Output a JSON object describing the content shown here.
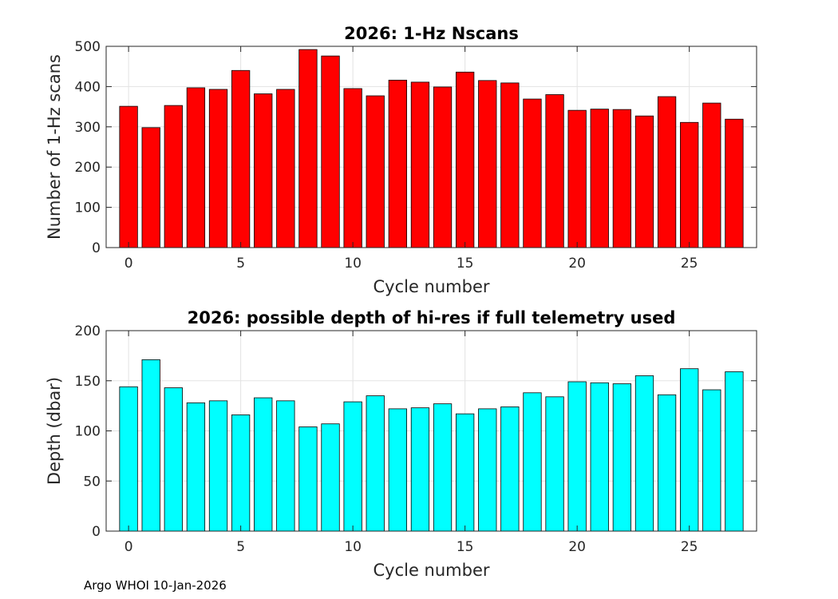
{
  "chart_data": [
    {
      "type": "bar",
      "title": "2026: 1-Hz Nscans",
      "xlabel": "Cycle number",
      "ylabel": "Number of 1-Hz scans",
      "xlim": [
        -1,
        28
      ],
      "ylim": [
        0,
        500
      ],
      "xticks": [
        0,
        5,
        10,
        15,
        20,
        25
      ],
      "yticks": [
        0,
        100,
        200,
        300,
        400,
        500
      ],
      "grid": true,
      "color": "#ff0000",
      "x": [
        0,
        1,
        2,
        3,
        4,
        5,
        6,
        7,
        8,
        9,
        10,
        11,
        12,
        13,
        14,
        15,
        16,
        17,
        18,
        19,
        20,
        21,
        22,
        23,
        24,
        25,
        26,
        27
      ],
      "values": [
        351,
        298,
        353,
        397,
        393,
        440,
        382,
        393,
        492,
        476,
        395,
        377,
        416,
        411,
        399,
        436,
        415,
        409,
        369,
        380,
        341,
        344,
        343,
        327,
        375,
        311,
        359,
        319
      ]
    },
    {
      "type": "bar",
      "title": "2026: possible depth of hi-res if full telemetry used",
      "xlabel": "Cycle number",
      "ylabel": "Depth (dbar)",
      "xlim": [
        -1,
        28
      ],
      "ylim": [
        0,
        200
      ],
      "xticks": [
        0,
        5,
        10,
        15,
        20,
        25
      ],
      "yticks": [
        0,
        50,
        100,
        150,
        200
      ],
      "grid": true,
      "color": "#00ffff",
      "x": [
        0,
        1,
        2,
        3,
        4,
        5,
        6,
        7,
        8,
        9,
        10,
        11,
        12,
        13,
        14,
        15,
        16,
        17,
        18,
        19,
        20,
        21,
        22,
        23,
        24,
        25,
        26,
        27
      ],
      "values": [
        144,
        171,
        143,
        128,
        130,
        116,
        133,
        130,
        104,
        107,
        129,
        135,
        122,
        123,
        127,
        117,
        122,
        124,
        138,
        134,
        149,
        148,
        147,
        155,
        136,
        162,
        141,
        159
      ]
    }
  ],
  "footer": "Argo WHOI 10-Jan-2026"
}
